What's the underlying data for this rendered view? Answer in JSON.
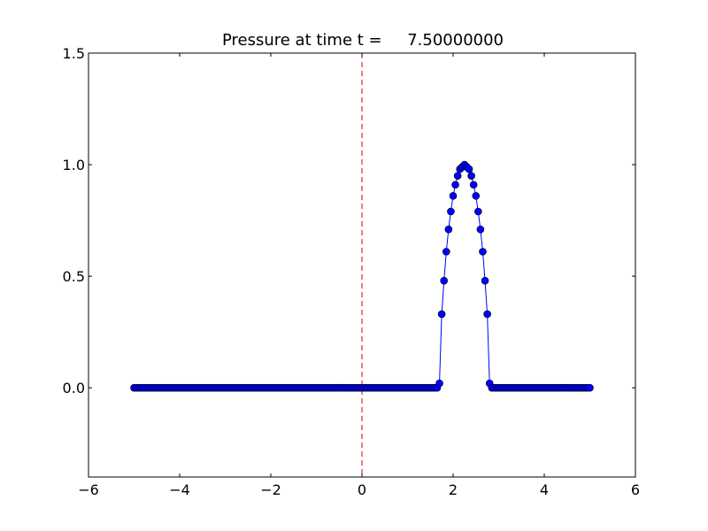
{
  "chart_data": {
    "type": "line",
    "title": "Pressure at time t =     7.50000000",
    "xlabel": "",
    "ylabel": "",
    "xlim": [
      -6,
      6
    ],
    "ylim": [
      -0.4,
      1.5
    ],
    "grid": false,
    "x_ticks": [
      "−6",
      "−4",
      "−2",
      "0",
      "2",
      "4",
      "6"
    ],
    "x_tick_values": [
      -6,
      -4,
      -2,
      0,
      2,
      4,
      6
    ],
    "y_ticks": [
      "0.0",
      "0.5",
      "1.0",
      "1.5"
    ],
    "y_tick_values": [
      0,
      0.5,
      1.0,
      1.5
    ],
    "series": [
      {
        "x_start": -5,
        "x_step": 0.05,
        "marker": "circle",
        "color": "#0000ff",
        "y": [
          0,
          0,
          0,
          0,
          0,
          0,
          0,
          0,
          0,
          0,
          0,
          0,
          0,
          0,
          0,
          0,
          0,
          0,
          0,
          0,
          0,
          0,
          0,
          0,
          0,
          0,
          0,
          0,
          0,
          0,
          0,
          0,
          0,
          0,
          0,
          0,
          0,
          0,
          0,
          0,
          0,
          0,
          0,
          0,
          0,
          0,
          0,
          0,
          0,
          0,
          0,
          0,
          0,
          0,
          0,
          0,
          0,
          0,
          0,
          0,
          0,
          0,
          0,
          0,
          0,
          0,
          0,
          0,
          0,
          0,
          0,
          0,
          0,
          0,
          0,
          0,
          0,
          0,
          0,
          0,
          0,
          0,
          0,
          0,
          0,
          0,
          0,
          0,
          0,
          0,
          0,
          0,
          0,
          0,
          0,
          0,
          0,
          0,
          0,
          0,
          0,
          0,
          0,
          0,
          0,
          0,
          0,
          0,
          0,
          0,
          0,
          0,
          0,
          0,
          0,
          0,
          0,
          0,
          0,
          0,
          0,
          0,
          0,
          0,
          0,
          0,
          0,
          0,
          0,
          0,
          0,
          0,
          0,
          0,
          0.02,
          0.33,
          0.48,
          0.61,
          0.71,
          0.79,
          0.86,
          0.91,
          0.95,
          0.98,
          0.99,
          1.0,
          0.99,
          0.98,
          0.95,
          0.91,
          0.86,
          0.79,
          0.71,
          0.61,
          0.48,
          0.33,
          0.02,
          0,
          0,
          0,
          0,
          0,
          0,
          0,
          0,
          0,
          0,
          0,
          0,
          0,
          0,
          0,
          0,
          0,
          0,
          0,
          0,
          0,
          0,
          0,
          0,
          0,
          0,
          0,
          0,
          0,
          0,
          0,
          0,
          0,
          0,
          0,
          0,
          0,
          0,
          0,
          0,
          0,
          0,
          0,
          0
        ]
      }
    ],
    "reference_line": {
      "x": 0,
      "style": "dashed",
      "color": "#cc0000"
    }
  }
}
